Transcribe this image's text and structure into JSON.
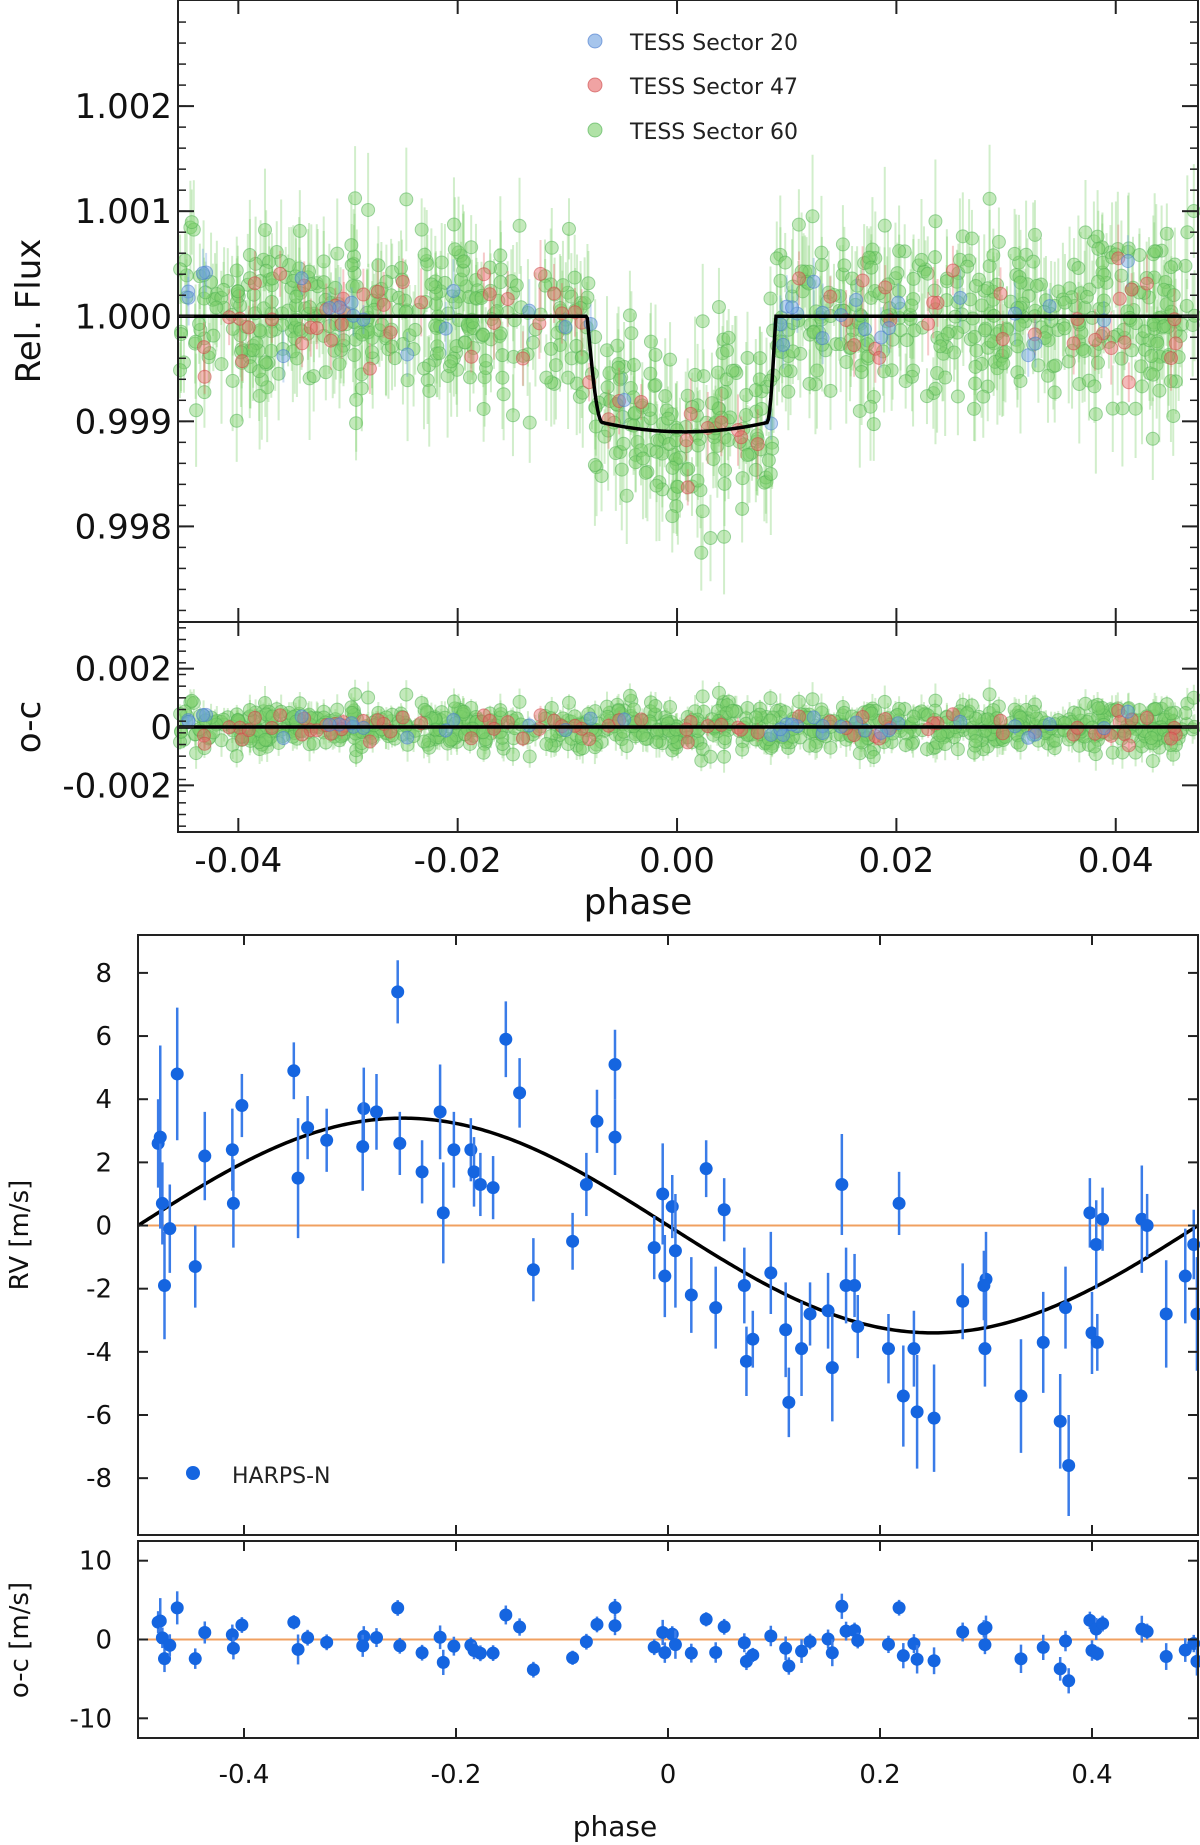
{
  "chart_data": [
    {
      "id": "lc",
      "type": "scatter",
      "title": "",
      "ylabel": "Rel. Flux",
      "xlabel": "phase",
      "xlim": [
        -0.0455,
        0.0475
      ],
      "ylim": [
        0.99709,
        1.00301
      ],
      "yticks": [
        0.998,
        0.999,
        1.0,
        1.001,
        1.002
      ],
      "ytick_labels": [
        "0.998",
        "0.999",
        "1.000",
        "1.001",
        "1.002"
      ],
      "xticks": [
        -0.04,
        -0.02,
        0.0,
        0.02,
        0.04
      ],
      "xtick_labels": [
        "-0.04",
        "-0.02",
        "0.00",
        "0.02",
        "0.04"
      ],
      "legend": [
        {
          "label": "TESS Sector 20",
          "color": "#6a9fe0"
        },
        {
          "label": "TESS Sector 47",
          "color": "#e66666"
        },
        {
          "label": "TESS Sector 60",
          "color": "#7ccf6a"
        }
      ],
      "model": {
        "type": "transit",
        "baseline": 1.0,
        "depth": 0.0011,
        "t1": -0.0082,
        "t2": -0.0068,
        "t3": 0.0082,
        "t4": 0.009,
        "color": "#000000"
      },
      "n_points_per_sector": [
        40,
        80,
        900
      ]
    },
    {
      "id": "lc_resid",
      "type": "scatter",
      "ylabel": "o-c",
      "xlim": [
        -0.0455,
        0.0475
      ],
      "ylim": [
        -0.0036,
        0.0036
      ],
      "yticks": [
        -0.002,
        0,
        0.002
      ],
      "ytick_labels": [
        "-0.002",
        "0",
        "0.002"
      ],
      "xticks": [
        -0.04,
        -0.02,
        0.0,
        0.02,
        0.04
      ],
      "xtick_labels": [
        "-0.04",
        "-0.02",
        "0.00",
        "0.02",
        "0.04"
      ],
      "zero_line_color": "#000000"
    },
    {
      "id": "rv",
      "type": "scatter",
      "ylabel": "RV [m/s]",
      "xlabel": "phase",
      "xlim": [
        -0.5,
        0.5
      ],
      "ylim": [
        -9.8,
        9.2
      ],
      "yticks": [
        -8,
        -6,
        -4,
        -2,
        0,
        2,
        4,
        6,
        8
      ],
      "ytick_labels": [
        "-8",
        "-6",
        "-4",
        "-2",
        "0",
        "2",
        "4",
        "6",
        "8"
      ],
      "xticks": [
        -0.4,
        -0.2,
        0,
        0.2,
        0.4
      ],
      "xtick_labels": [
        "-0.4",
        "-0.2",
        "0",
        "0.2",
        "0.4"
      ],
      "legend": [
        {
          "label": "HARPS-N",
          "color": "#1565e0"
        }
      ],
      "model": {
        "type": "sine",
        "amplitude": 3.4,
        "color": "#000000"
      },
      "zero_line_color": "#f0a060",
      "points": [
        {
          "x": -0.481,
          "y": 2.6,
          "err": 1.4
        },
        {
          "x": -0.479,
          "y": 2.8,
          "err": 2.9
        },
        {
          "x": -0.477,
          "y": 0.7,
          "err": 1.3
        },
        {
          "x": -0.475,
          "y": -1.9,
          "err": 1.7
        },
        {
          "x": -0.47,
          "y": -0.1,
          "err": 1.4
        },
        {
          "x": -0.463,
          "y": 4.8,
          "err": 2.1
        },
        {
          "x": -0.446,
          "y": -1.3,
          "err": 1.3
        },
        {
          "x": -0.437,
          "y": 2.2,
          "err": 1.4
        },
        {
          "x": -0.411,
          "y": 2.4,
          "err": 1.3
        },
        {
          "x": -0.41,
          "y": 0.7,
          "err": 1.4
        },
        {
          "x": -0.402,
          "y": 3.8,
          "err": 1.0
        },
        {
          "x": -0.353,
          "y": 4.9,
          "err": 0.9
        },
        {
          "x": -0.349,
          "y": 1.5,
          "err": 1.9
        },
        {
          "x": -0.34,
          "y": 3.1,
          "err": 1.0
        },
        {
          "x": -0.322,
          "y": 2.7,
          "err": 1.0
        },
        {
          "x": -0.287,
          "y": 3.7,
          "err": 1.3
        },
        {
          "x": -0.288,
          "y": 2.5,
          "err": 1.4
        },
        {
          "x": -0.275,
          "y": 3.6,
          "err": 1.2
        },
        {
          "x": -0.255,
          "y": 7.4,
          "err": 1.0
        },
        {
          "x": -0.253,
          "y": 2.6,
          "err": 1.0
        },
        {
          "x": -0.232,
          "y": 1.7,
          "err": 1.0
        },
        {
          "x": -0.215,
          "y": 3.6,
          "err": 1.5
        },
        {
          "x": -0.212,
          "y": 0.4,
          "err": 1.6
        },
        {
          "x": -0.202,
          "y": 2.4,
          "err": 1.2
        },
        {
          "x": -0.186,
          "y": 2.4,
          "err": 1.0
        },
        {
          "x": -0.183,
          "y": 1.7,
          "err": 1.1
        },
        {
          "x": -0.177,
          "y": 1.3,
          "err": 1.0
        },
        {
          "x": -0.165,
          "y": 1.2,
          "err": 1.0
        },
        {
          "x": -0.153,
          "y": 5.9,
          "err": 1.2
        },
        {
          "x": -0.14,
          "y": 4.2,
          "err": 1.1
        },
        {
          "x": -0.127,
          "y": -1.4,
          "err": 1.0
        },
        {
          "x": -0.09,
          "y": -0.5,
          "err": 0.9
        },
        {
          "x": -0.077,
          "y": 1.3,
          "err": 1.0
        },
        {
          "x": -0.067,
          "y": 3.3,
          "err": 1.0
        },
        {
          "x": -0.05,
          "y": 5.1,
          "err": 1.1
        },
        {
          "x": -0.05,
          "y": 2.8,
          "err": 1.2
        },
        {
          "x": -0.013,
          "y": -0.7,
          "err": 1.0
        },
        {
          "x": -0.005,
          "y": 1.0,
          "err": 1.6
        },
        {
          "x": -0.003,
          "y": -1.6,
          "err": 1.3
        },
        {
          "x": 0.004,
          "y": 0.6,
          "err": 1.0
        },
        {
          "x": 0.007,
          "y": -0.8,
          "err": 1.8
        },
        {
          "x": 0.022,
          "y": -2.2,
          "err": 1.2
        },
        {
          "x": 0.036,
          "y": 1.8,
          "err": 0.9
        },
        {
          "x": 0.045,
          "y": -2.6,
          "err": 1.3
        },
        {
          "x": 0.053,
          "y": 0.5,
          "err": 1.0
        },
        {
          "x": 0.072,
          "y": -1.9,
          "err": 1.2
        },
        {
          "x": 0.074,
          "y": -4.3,
          "err": 1.1
        },
        {
          "x": 0.08,
          "y": -3.6,
          "err": 0.9
        },
        {
          "x": 0.097,
          "y": -1.5,
          "err": 1.3
        },
        {
          "x": 0.111,
          "y": -3.3,
          "err": 1.5
        },
        {
          "x": 0.114,
          "y": -5.6,
          "err": 1.1
        },
        {
          "x": 0.126,
          "y": -3.9,
          "err": 1.5
        },
        {
          "x": 0.134,
          "y": -2.8,
          "err": 1.0
        },
        {
          "x": 0.151,
          "y": -2.7,
          "err": 1.2
        },
        {
          "x": 0.155,
          "y": -4.5,
          "err": 1.7
        },
        {
          "x": 0.164,
          "y": 1.3,
          "err": 1.6
        },
        {
          "x": 0.168,
          "y": -1.9,
          "err": 1.2
        },
        {
          "x": 0.176,
          "y": -1.9,
          "err": 1.0
        },
        {
          "x": 0.179,
          "y": -3.2,
          "err": 1.0
        },
        {
          "x": 0.208,
          "y": -3.9,
          "err": 1.1
        },
        {
          "x": 0.218,
          "y": 0.7,
          "err": 1.0
        },
        {
          "x": 0.222,
          "y": -5.4,
          "err": 1.6
        },
        {
          "x": 0.232,
          "y": -3.9,
          "err": 1.2
        },
        {
          "x": 0.235,
          "y": -5.9,
          "err": 1.8
        },
        {
          "x": 0.251,
          "y": -6.1,
          "err": 1.7
        },
        {
          "x": 0.278,
          "y": -2.4,
          "err": 1.2
        },
        {
          "x": 0.3,
          "y": -1.7,
          "err": 1.5
        },
        {
          "x": 0.298,
          "y": -1.9,
          "err": 1.1
        },
        {
          "x": 0.299,
          "y": -3.9,
          "err": 1.2
        },
        {
          "x": 0.333,
          "y": -5.4,
          "err": 1.8
        },
        {
          "x": 0.354,
          "y": -3.7,
          "err": 1.6
        },
        {
          "x": 0.37,
          "y": -6.2,
          "err": 1.5
        },
        {
          "x": 0.378,
          "y": -7.6,
          "err": 1.6
        },
        {
          "x": 0.375,
          "y": -2.6,
          "err": 1.3
        },
        {
          "x": 0.398,
          "y": 0.4,
          "err": 1.1
        },
        {
          "x": 0.4,
          "y": -3.4,
          "err": 1.3
        },
        {
          "x": 0.404,
          "y": -0.6,
          "err": 1.4
        },
        {
          "x": 0.405,
          "y": -3.7,
          "err": 0.9
        },
        {
          "x": 0.41,
          "y": 0.2,
          "err": 1.0
        },
        {
          "x": 0.447,
          "y": 0.2,
          "err": 1.7
        },
        {
          "x": 0.452,
          "y": 0.0,
          "err": 1.0
        },
        {
          "x": 0.47,
          "y": -2.8,
          "err": 1.7
        },
        {
          "x": 0.488,
          "y": -1.6,
          "err": 1.5
        },
        {
          "x": 0.496,
          "y": -0.6,
          "err": 1.1
        },
        {
          "x": 0.499,
          "y": -2.8,
          "err": 1.8
        }
      ]
    },
    {
      "id": "rv_resid",
      "type": "scatter",
      "ylabel": "o-c [m/s]",
      "xlabel": "phase",
      "xlim": [
        -0.5,
        0.5
      ],
      "ylim": [
        -12.5,
        12.5
      ],
      "yticks": [
        -10,
        0,
        10
      ],
      "ytick_labels": [
        "-10",
        "0",
        "10"
      ],
      "xticks": [
        -0.4,
        -0.2,
        0,
        0.2,
        0.4
      ],
      "xtick_labels": [
        "-0.4",
        "-0.2",
        "0",
        "0.2",
        "0.4"
      ],
      "zero_line_color": "#f0a060"
    }
  ]
}
